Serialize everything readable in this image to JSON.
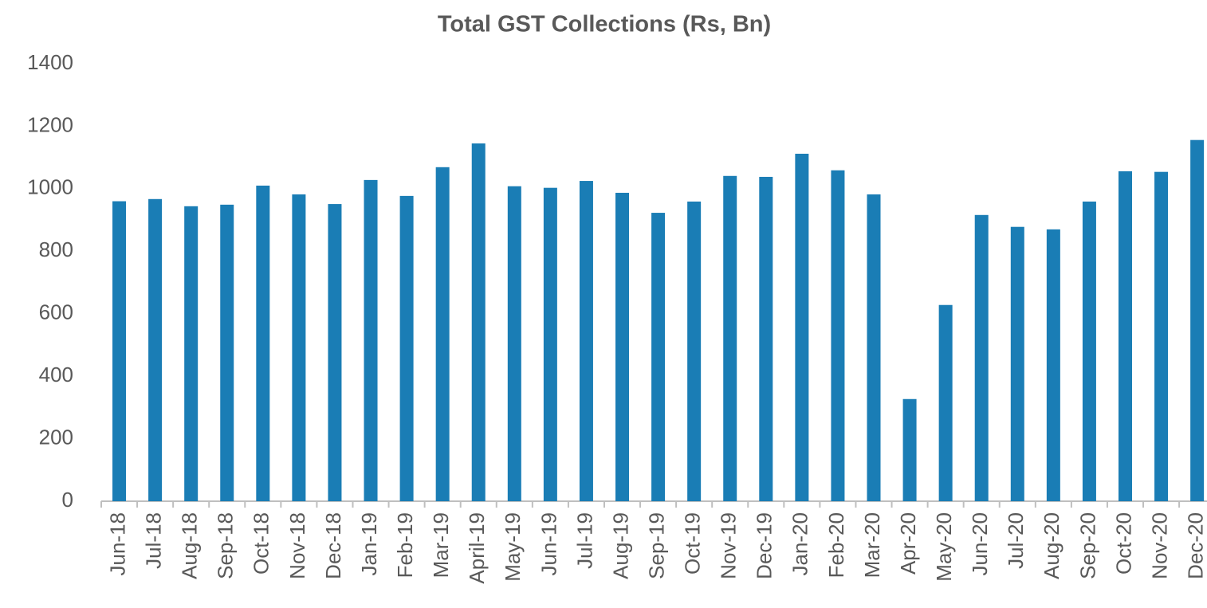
{
  "chart_data": {
    "type": "bar",
    "title": "Total GST Collections (Rs, Bn)",
    "categories": [
      "Jun-18",
      "Jul-18",
      "Aug-18",
      "Sep-18",
      "Oct-18",
      "Nov-18",
      "Dec-18",
      "Jan-19",
      "Feb-19",
      "Mar-19",
      "April-19",
      "May-19",
      "Jun-19",
      "Jul-19",
      "Aug-19",
      "Sep-19",
      "Oct-19",
      "Nov-19",
      "Dec-19",
      "Jan-20",
      "Feb-20",
      "Mar-20",
      "Apr-20",
      "May-20",
      "Jun-20",
      "Jul-20",
      "Aug-20",
      "Sep-20",
      "Oct-20",
      "Nov-20",
      "Dec-20"
    ],
    "values": [
      960,
      967,
      944,
      949,
      1010,
      982,
      951,
      1028,
      977,
      1069,
      1145,
      1008,
      1003,
      1025,
      987,
      923,
      959,
      1041,
      1038,
      1112,
      1059,
      982,
      327,
      628,
      916,
      878,
      870,
      959,
      1056,
      1054,
      1156
    ],
    "color": "#1a7db5",
    "ylim": [
      0,
      1400
    ],
    "yticks": [
      0,
      200,
      400,
      600,
      800,
      1000,
      1200,
      1400
    ],
    "grid": false
  }
}
